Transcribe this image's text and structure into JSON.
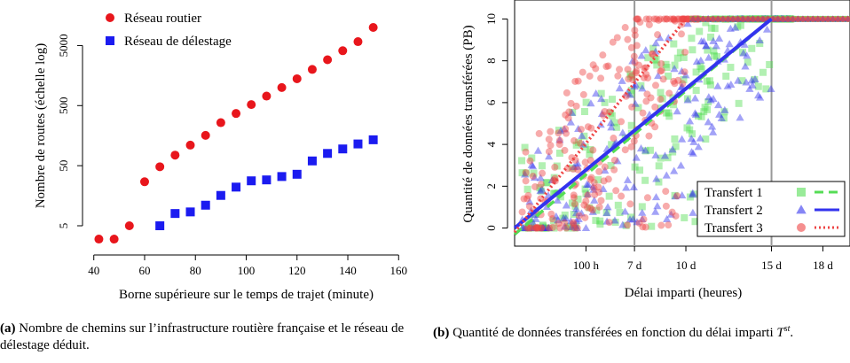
{
  "panel_a": {
    "caption_tag": "(a)",
    "caption_text": "Nombre de chemins sur l’infrastructure routière française et le réseau de délestage déduit.",
    "chart_data": {
      "type": "scatter",
      "xlabel": "Borne supérieure sur le temps de trajet (minute)",
      "ylabel": "Nombre de routes (échelle log)",
      "y_scale": "log",
      "xlim": [
        38,
        162
      ],
      "ylim": [
        2,
        25000
      ],
      "x_ticks": [
        "40",
        "60",
        "80",
        "100",
        "120",
        "140",
        "160"
      ],
      "y_ticks": [
        "5",
        "50",
        "500",
        "5000"
      ],
      "legend_position": "top-left",
      "grid": false,
      "series": [
        {
          "name": "Réseau routier",
          "color": "#e8161c",
          "marker": "circle",
          "points": [
            [
              42,
              3
            ],
            [
              48,
              3
            ],
            [
              54,
              5
            ],
            [
              60,
              27
            ],
            [
              66,
              48
            ],
            [
              72,
              75
            ],
            [
              78,
              110
            ],
            [
              84,
              160
            ],
            [
              90,
              260
            ],
            [
              96,
              370
            ],
            [
              102,
              520
            ],
            [
              108,
              720
            ],
            [
              114,
              1000
            ],
            [
              120,
              1400
            ],
            [
              126,
              2000
            ],
            [
              132,
              2900
            ],
            [
              138,
              4100
            ],
            [
              144,
              5800
            ],
            [
              150,
              10000
            ]
          ]
        },
        {
          "name": "Réseau de délestage",
          "color": "#1b1bf0",
          "marker": "square",
          "points": [
            [
              66,
              5
            ],
            [
              72,
              8
            ],
            [
              78,
              8.5
            ],
            [
              84,
              11
            ],
            [
              90,
              16
            ],
            [
              96,
              22
            ],
            [
              102,
              28
            ],
            [
              108,
              29
            ],
            [
              114,
              33
            ],
            [
              120,
              36
            ],
            [
              126,
              60
            ],
            [
              132,
              80
            ],
            [
              138,
              95
            ],
            [
              144,
              115
            ],
            [
              150,
              135
            ]
          ]
        }
      ]
    }
  },
  "panel_b": {
    "caption_tag": "(b)",
    "caption_text": "Quantité de données transférées en fonction du délai imparti ",
    "caption_symbol": "T",
    "caption_sup": "st",
    "caption_end": ".",
    "chart_data": {
      "type": "scatter",
      "xlabel": "Délai imparti (heures)",
      "ylabel": "Quantité de données transférées (PB)",
      "xlim": [
        0,
        470
      ],
      "ylim": [
        -0.4,
        10.4
      ],
      "x_ticks": [
        {
          "value": 100,
          "label": "100 h"
        },
        {
          "value": 168,
          "label": "7 d"
        },
        {
          "value": 240,
          "label": "10 d"
        },
        {
          "value": 360,
          "label": "15 d"
        },
        {
          "value": 432,
          "label": "18 d"
        }
      ],
      "y_ticks": [
        "0",
        "2",
        "4",
        "6",
        "8",
        "10"
      ],
      "vlines": [
        168,
        360
      ],
      "legend_position": "bottom-right",
      "grid": false,
      "series": [
        {
          "name": "Transfert 1",
          "color": "#55dd55",
          "marker": "square",
          "fit_line": [
            [
              0,
              -0.3
            ],
            [
              360,
              10
            ]
          ],
          "line_style": "dashed"
        },
        {
          "name": "Transfert 2",
          "color": "#3333ee",
          "marker": "triangle",
          "fit_line": [
            [
              0,
              0
            ],
            [
              360,
              10
            ]
          ],
          "line_style": "solid"
        },
        {
          "name": "Transfert 3",
          "color": "#ee4444",
          "marker": "circle",
          "fit_line": [
            [
              0,
              -0.2
            ],
            [
              240,
              10
            ]
          ],
          "line_style": "dotted"
        }
      ]
    }
  }
}
